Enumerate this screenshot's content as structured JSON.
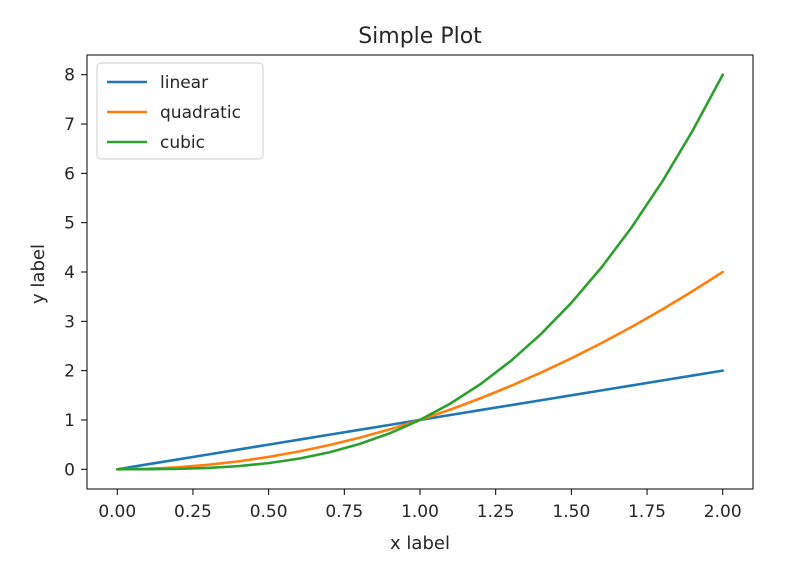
{
  "chart_data": {
    "type": "line",
    "title": "Simple Plot",
    "xlabel": "x label",
    "ylabel": "y label",
    "xlim": [
      -0.1,
      2.1
    ],
    "ylim": [
      -0.4,
      8.4
    ],
    "x_ticks": [
      0.0,
      0.25,
      0.5,
      0.75,
      1.0,
      1.25,
      1.5,
      1.75,
      2.0
    ],
    "x_tick_labels": [
      "0.00",
      "0.25",
      "0.50",
      "0.75",
      "1.00",
      "1.25",
      "1.50",
      "1.75",
      "2.00"
    ],
    "y_ticks": [
      0,
      1,
      2,
      3,
      4,
      5,
      6,
      7,
      8
    ],
    "y_tick_labels": [
      "0",
      "1",
      "2",
      "3",
      "4",
      "5",
      "6",
      "7",
      "8"
    ],
    "x": [
      0.0,
      0.1,
      0.2,
      0.3,
      0.4,
      0.5,
      0.6,
      0.7,
      0.8,
      0.9,
      1.0,
      1.1,
      1.2,
      1.3,
      1.4,
      1.5,
      1.6,
      1.7,
      1.8,
      1.9,
      2.0
    ],
    "series": [
      {
        "name": "linear",
        "color": "#1f77b4",
        "values": [
          0.0,
          0.1,
          0.2,
          0.3,
          0.4,
          0.5,
          0.6,
          0.7,
          0.8,
          0.9,
          1.0,
          1.1,
          1.2,
          1.3,
          1.4,
          1.5,
          1.6,
          1.7,
          1.8,
          1.9,
          2.0
        ]
      },
      {
        "name": "quadratic",
        "color": "#ff7f0e",
        "values": [
          0.0,
          0.01,
          0.04,
          0.09,
          0.16,
          0.25,
          0.36,
          0.49,
          0.64,
          0.81,
          1.0,
          1.21,
          1.44,
          1.69,
          1.96,
          2.25,
          2.56,
          2.89,
          3.24,
          3.61,
          4.0
        ]
      },
      {
        "name": "cubic",
        "color": "#2ca02c",
        "values": [
          0.0,
          0.001,
          0.008,
          0.027,
          0.064,
          0.125,
          0.216,
          0.343,
          0.512,
          0.729,
          1.0,
          1.331,
          1.728,
          2.197,
          2.744,
          3.375,
          4.096,
          4.913,
          5.832,
          6.859,
          8.0
        ]
      }
    ],
    "legend_position": "top-left",
    "grid": false
  }
}
